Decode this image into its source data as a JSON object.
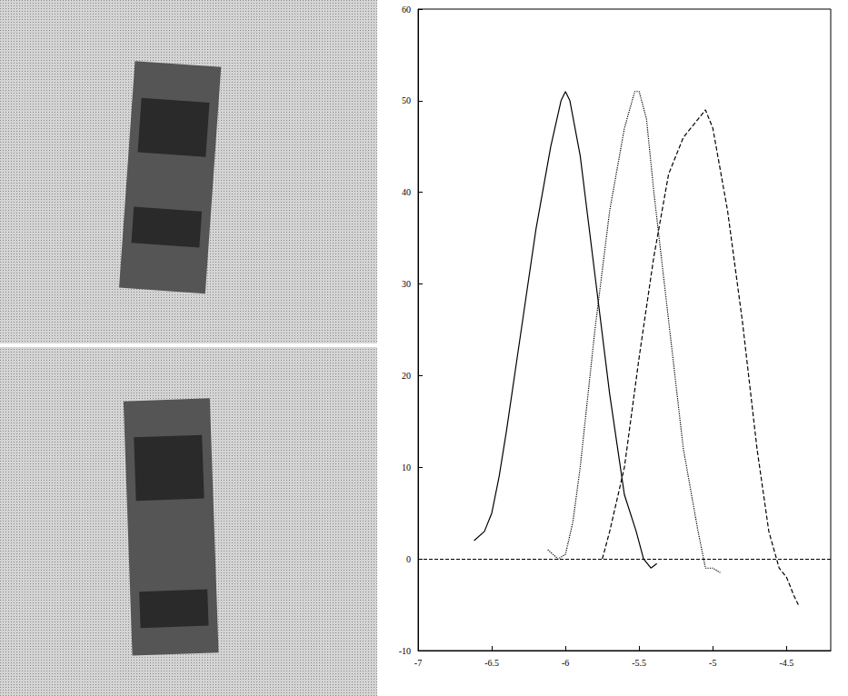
{
  "chart_data": {
    "type": "line",
    "xlim": [
      -7,
      -4.2
    ],
    "xticks": [
      -7,
      -6.5,
      -6,
      -5.5,
      -5,
      -4.5
    ],
    "ylim": [
      -10,
      60
    ],
    "yticks": [
      -10,
      0,
      10,
      20,
      30,
      40,
      50,
      60
    ],
    "reference_y": 0,
    "grid": false,
    "series": [
      {
        "color": "#000000",
        "line_style": "solid",
        "x": [
          -6.62,
          -6.55,
          -6.5,
          -6.45,
          -6.4,
          -6.3,
          -6.2,
          -6.1,
          -6.03,
          -6.0,
          -5.97,
          -5.9,
          -5.8,
          -5.7,
          -5.6,
          -5.52,
          -5.47,
          -5.42,
          -5.38
        ],
        "values": [
          2,
          3,
          5,
          9,
          14,
          25,
          36,
          45,
          50,
          51,
          50,
          44,
          31,
          18,
          7,
          3,
          0,
          -1,
          -0.5
        ]
      },
      {
        "color": "#000000",
        "line_style": "dotted",
        "x": [
          -6.12,
          -6.05,
          -6.0,
          -5.95,
          -5.9,
          -5.8,
          -5.7,
          -5.6,
          -5.53,
          -5.5,
          -5.45,
          -5.4,
          -5.3,
          -5.2,
          -5.1,
          -5.05,
          -5.0,
          -4.95
        ],
        "values": [
          1,
          0,
          0.5,
          4,
          10,
          25,
          38,
          47,
          51,
          51,
          48,
          40,
          26,
          12,
          3,
          -1,
          -1,
          -1.5
        ]
      },
      {
        "color": "#000000",
        "line_style": "dashed",
        "x": [
          -5.75,
          -5.7,
          -5.6,
          -5.5,
          -5.4,
          -5.3,
          -5.2,
          -5.1,
          -5.05,
          -5.0,
          -4.9,
          -4.8,
          -4.7,
          -4.62,
          -4.55,
          -4.5,
          -4.45,
          -4.42
        ],
        "values": [
          0,
          3,
          10,
          22,
          33,
          42,
          46,
          48,
          49,
          47,
          38,
          26,
          12,
          3,
          -1,
          -2,
          -4,
          -5
        ]
      }
    ]
  }
}
